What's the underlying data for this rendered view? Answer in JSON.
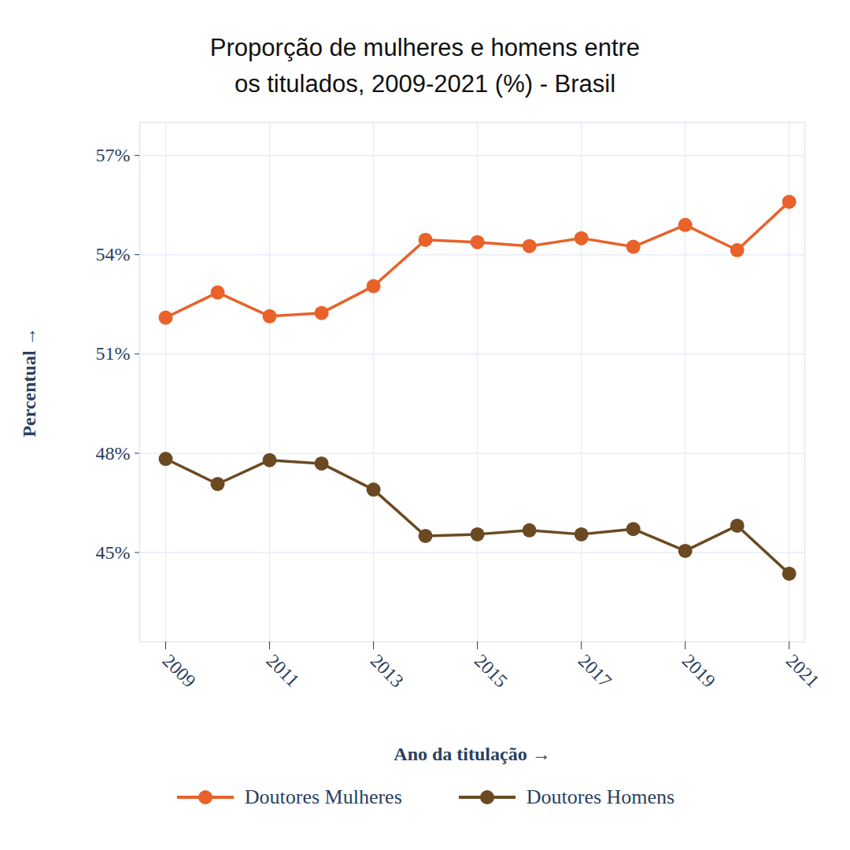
{
  "chart_data": {
    "type": "line",
    "title": "Proporção de mulheres e homens entre\nos titulados, 2009-2021 (%) - Brasil",
    "x_label": "Ano da titulação",
    "y_label": "Percentual",
    "x": [
      2009,
      2010,
      2011,
      2012,
      2013,
      2014,
      2015,
      2016,
      2017,
      2018,
      2019,
      2020,
      2021
    ],
    "series": [
      {
        "name": "Doutores Mulheres",
        "color": "#e8622a",
        "marker": "circle",
        "values": [
          52.1,
          52.86,
          52.14,
          52.24,
          53.05,
          54.45,
          54.38,
          54.26,
          54.5,
          54.24,
          54.9,
          54.14,
          55.6
        ]
      },
      {
        "name": "Doutores Homens",
        "color": "#6b4a22",
        "marker": "circle",
        "values": [
          47.83,
          47.07,
          47.79,
          47.69,
          46.9,
          45.5,
          45.55,
          45.67,
          45.55,
          45.71,
          45.05,
          45.81,
          44.36
        ]
      }
    ],
    "xlim": [
      2008.5,
      2021.3
    ],
    "xticks": [
      2009,
      2011,
      2013,
      2015,
      2017,
      2019,
      2021
    ],
    "ylim": [
      42.3,
      58
    ],
    "yticks": [
      {
        "value": 45,
        "label": "45%"
      },
      {
        "value": 48,
        "label": "48%"
      },
      {
        "value": 51,
        "label": "51%"
      },
      {
        "value": 54,
        "label": "54%"
      },
      {
        "value": 57,
        "label": "57%"
      }
    ],
    "grid": true,
    "legend": "bottom"
  }
}
